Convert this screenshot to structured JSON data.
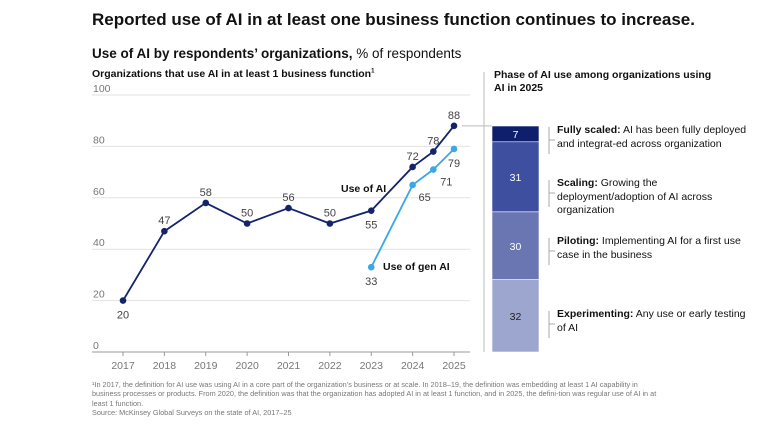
{
  "title": "Reported use of AI in at least one business function continues to increase.",
  "subtitle_bold": "Use of AI by respondents’ organizations,",
  "subtitle_rest": " % of respondents",
  "chart_data": [
    {
      "type": "line",
      "title": "Organizations that use AI in at least 1 business function",
      "title_footnote_mark": "1",
      "ylim": [
        0,
        100
      ],
      "yticks": [
        0,
        20,
        40,
        60,
        80,
        100
      ],
      "xticks": [
        "2017",
        "2018",
        "2019",
        "2020",
        "2021",
        "2022",
        "2023",
        "2024",
        "2025"
      ],
      "grid": true,
      "series": [
        {
          "name": "Use of AI",
          "color": "#14236b",
          "x": [
            2017,
            2018,
            2019,
            2020,
            2021,
            2022,
            2023,
            2024,
            2024.5,
            2025
          ],
          "values": [
            20,
            47,
            58,
            50,
            56,
            50,
            55,
            72,
            78,
            88
          ]
        },
        {
          "name": "Use of gen AI",
          "color": "#3aa7e8",
          "x": [
            2023,
            2024,
            2024.5,
            2025
          ],
          "values": [
            33,
            65,
            71,
            79
          ]
        }
      ]
    },
    {
      "type": "bar",
      "stacked": true,
      "title": "Phase of AI use among organizations using AI in 2025",
      "segments": [
        {
          "value": 7,
          "label": "Fully scaled:",
          "desc": "AI has been fully deployed and integrat-ed across organization",
          "color": "#0f1f6b"
        },
        {
          "value": 31,
          "label": "Scaling:",
          "desc": "Growing the deployment/adoption of AI across organization",
          "color": "#3d4f9e"
        },
        {
          "value": 30,
          "label": "Piloting:",
          "desc": "Implementing AI for a first use case in the business",
          "color": "#6a76b2"
        },
        {
          "value": 32,
          "label": "Experimenting:",
          "desc": "Any use or early testing of AI",
          "color": "#9ca6cf"
        }
      ]
    }
  ],
  "footnote": "¹In 2017, the definition for AI use was using AI in a core part of the organization’s business or at scale. In 2018–19, the definition was embedding at least 1 AI capability in business processes or products. From 2020, the definition was that the organization has adopted AI in at least 1 function, and in 2025, the defini-tion was regular use of AI in at least 1 function.",
  "source": "Source: McKinsey Global Surveys on the state of AI, 2017–25"
}
